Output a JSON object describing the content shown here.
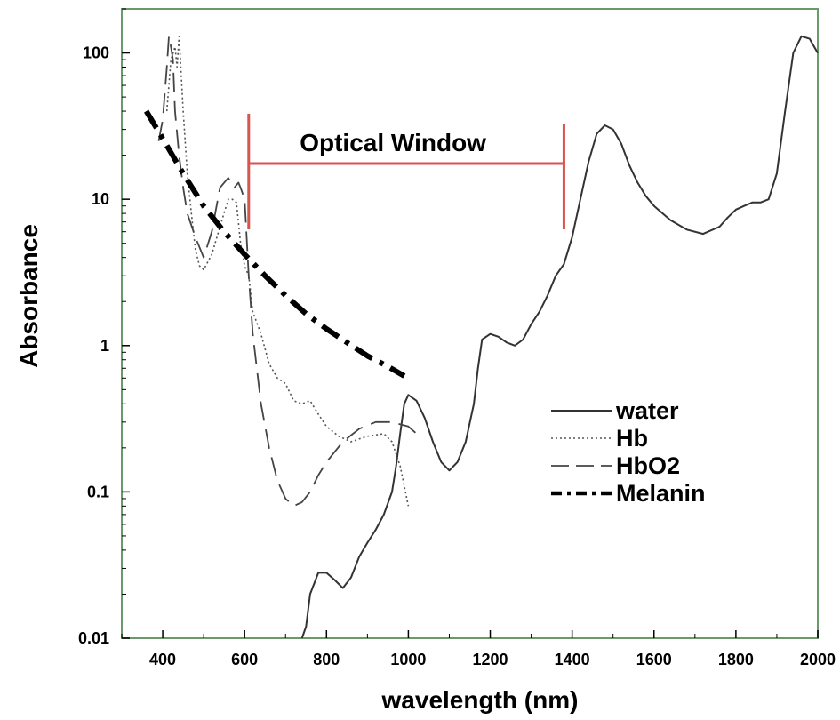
{
  "chart_data": {
    "type": "line",
    "xlabel": "wavelength (nm)",
    "ylabel": "Absorbance",
    "y_scale": "log",
    "xlim": [
      300,
      2000
    ],
    "ylim": [
      0.01,
      200
    ],
    "x_ticks": [
      400,
      600,
      800,
      1000,
      1200,
      1400,
      1600,
      1800,
      2000
    ],
    "x_tick_labels": [
      "400",
      "600",
      "800",
      "1000",
      "1200",
      "1400",
      "1600",
      "1800",
      "2000"
    ],
    "y_ticks": [
      0.01,
      0.1,
      1,
      10,
      100
    ],
    "y_tick_labels": [
      "0.01",
      "0.1",
      "1",
      "10",
      "100"
    ],
    "grid": false,
    "legend_position": "right",
    "annotation": {
      "label": "Optical Window",
      "x_start": 610,
      "x_end": 1380,
      "color": "#d9534f"
    },
    "series": [
      {
        "name": "water",
        "style": "solid",
        "color": "#333333",
        "x": [
          740,
          750,
          760,
          780,
          800,
          820,
          840,
          860,
          880,
          900,
          920,
          940,
          960,
          970,
          980,
          990,
          1000,
          1020,
          1040,
          1060,
          1080,
          1100,
          1120,
          1140,
          1160,
          1170,
          1180,
          1200,
          1220,
          1240,
          1260,
          1280,
          1300,
          1320,
          1340,
          1360,
          1380,
          1400,
          1420,
          1440,
          1460,
          1480,
          1500,
          1520,
          1540,
          1560,
          1580,
          1600,
          1640,
          1680,
          1720,
          1760,
          1780,
          1800,
          1820,
          1840,
          1860,
          1880,
          1900,
          1920,
          1940,
          1960,
          1980,
          2000
        ],
        "y": [
          0.0082,
          0.012,
          0.02,
          0.028,
          0.028,
          0.025,
          0.022,
          0.026,
          0.036,
          0.045,
          0.055,
          0.07,
          0.1,
          0.15,
          0.25,
          0.4,
          0.46,
          0.42,
          0.32,
          0.22,
          0.16,
          0.14,
          0.16,
          0.22,
          0.4,
          0.7,
          1.1,
          1.2,
          1.15,
          1.05,
          1.0,
          1.1,
          1.4,
          1.7,
          2.2,
          3.0,
          3.6,
          5.5,
          10,
          18,
          28,
          32,
          30,
          24,
          17,
          13,
          10.5,
          9,
          7.2,
          6.2,
          5.8,
          6.5,
          7.5,
          8.5,
          9,
          9.5,
          9.5,
          10,
          15,
          40,
          100,
          130,
          125,
          100
        ]
      },
      {
        "name": "Hb",
        "style": "dotted",
        "color": "#555555",
        "x": [
          410,
          420,
          430,
          435,
          440,
          450,
          460,
          470,
          480,
          490,
          500,
          520,
          540,
          560,
          570,
          580,
          590,
          600,
          610,
          620,
          640,
          660,
          680,
          700,
          720,
          740,
          760,
          780,
          800,
          830,
          860,
          880,
          900,
          940,
          960,
          980,
          1000
        ],
        "y": [
          40,
          90,
          110,
          80,
          130,
          40,
          15,
          8,
          4.5,
          3.5,
          3.3,
          4.2,
          6.5,
          10,
          10,
          9.5,
          5,
          3.5,
          3,
          1.7,
          1.2,
          0.75,
          0.6,
          0.55,
          0.42,
          0.4,
          0.42,
          0.34,
          0.28,
          0.24,
          0.22,
          0.23,
          0.24,
          0.25,
          0.22,
          0.15,
          0.08
        ]
      },
      {
        "name": "HbO2",
        "style": "dashed",
        "color": "#444444",
        "x": [
          390,
          400,
          410,
          415,
          420,
          425,
          430,
          440,
          450,
          460,
          480,
          500,
          520,
          540,
          560,
          575,
          585,
          590,
          600,
          610,
          620,
          640,
          660,
          680,
          700,
          720,
          740,
          760,
          780,
          800,
          840,
          880,
          920,
          960,
          1000,
          1020
        ],
        "y": [
          25,
          35,
          80,
          130,
          110,
          90,
          40,
          20,
          12,
          8,
          5.5,
          4,
          6,
          12,
          14,
          12,
          13,
          12,
          10,
          3,
          1.2,
          0.4,
          0.2,
          0.12,
          0.09,
          0.08,
          0.085,
          0.1,
          0.13,
          0.16,
          0.22,
          0.27,
          0.3,
          0.3,
          0.28,
          0.25
        ]
      },
      {
        "name": "Melanin",
        "style": "dash-dot",
        "color": "#000000",
        "x": [
          360,
          400,
          450,
          500,
          550,
          600,
          650,
          700,
          750,
          800,
          850,
          900,
          950,
          990
        ],
        "y": [
          40,
          26,
          15,
          9,
          6,
          4.2,
          3.0,
          2.2,
          1.65,
          1.3,
          1.05,
          0.85,
          0.72,
          0.62
        ]
      }
    ]
  }
}
